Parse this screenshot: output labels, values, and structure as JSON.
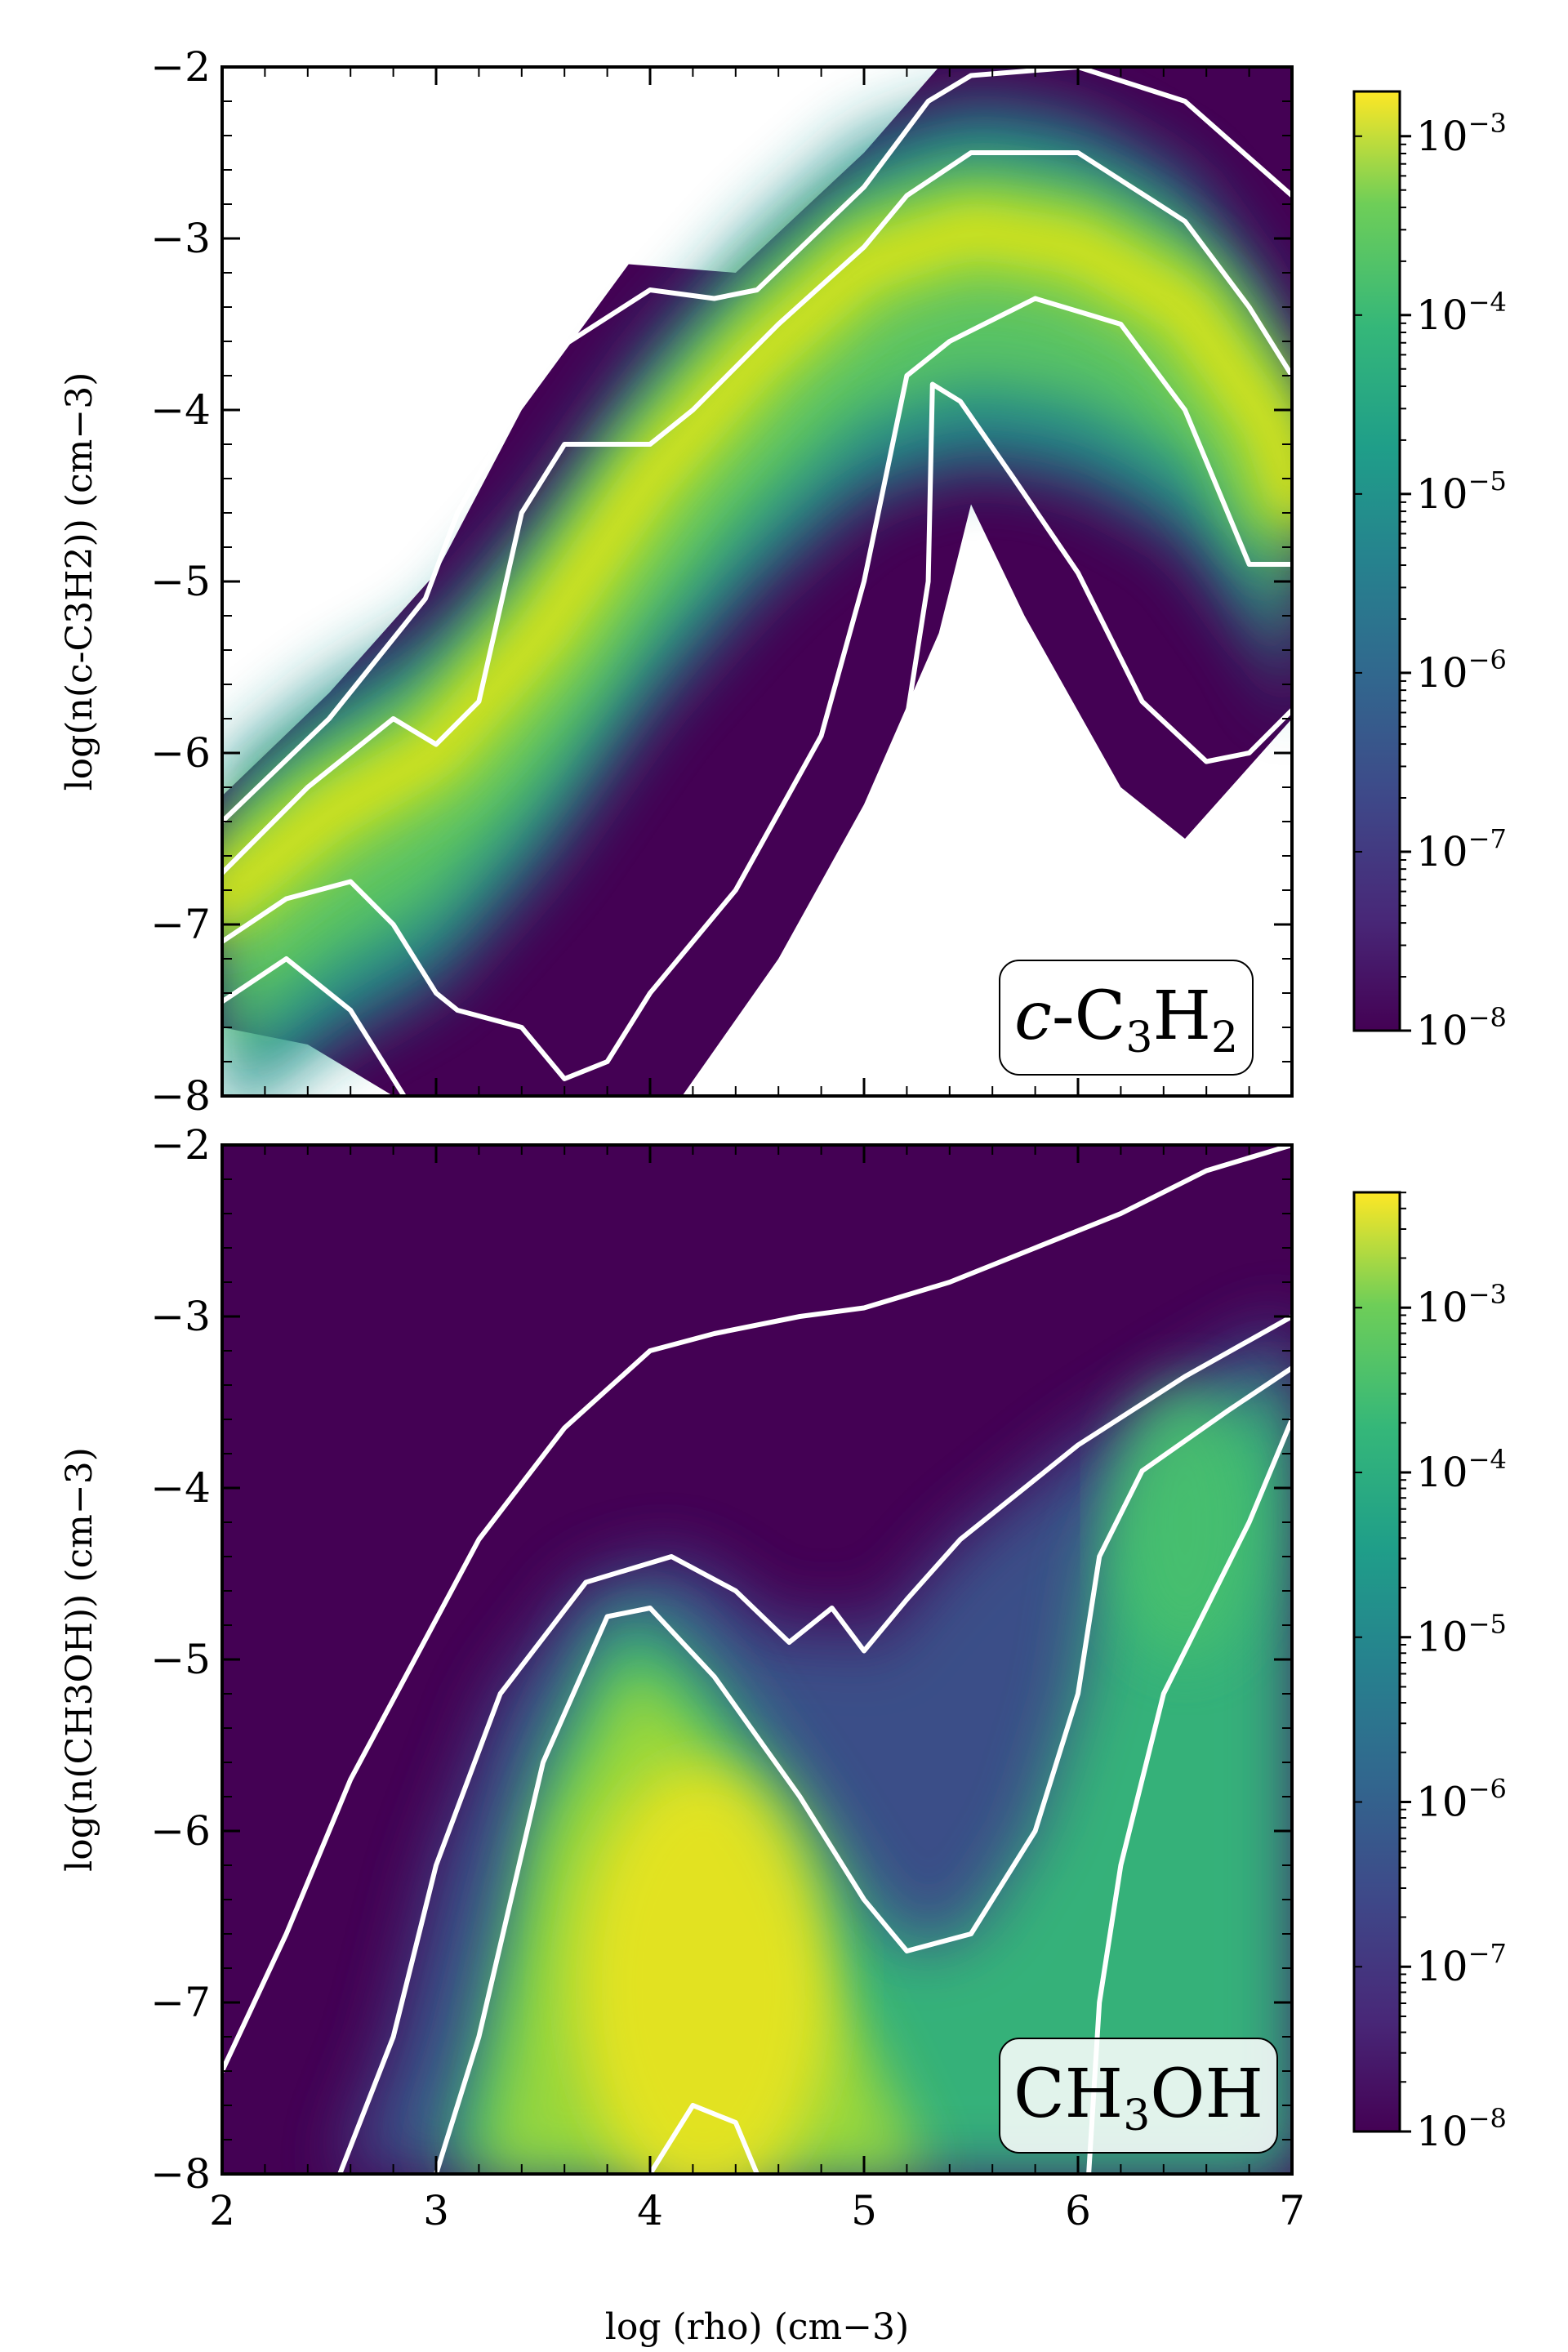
{
  "chart_data": [
    {
      "type": "heatmap",
      "species": "c-C3H2",
      "title": "",
      "tag_text": {
        "pre": "",
        "italic": "c",
        "mid": "-C",
        "sub1": "3",
        "mid2": "H",
        "sub2": "2",
        "post": ""
      },
      "ylabel_text": "log(n(c-C3H2)) (cm−3)",
      "xlabel": "",
      "xlim": [
        2,
        7
      ],
      "ylim": [
        -8,
        -2
      ],
      "xticks": [
        2,
        3,
        4,
        5,
        6,
        7
      ],
      "yticks": [
        -8,
        -7,
        -6,
        -5,
        -4,
        -3,
        -2
      ],
      "ytick_labels": [
        "−8",
        "−7",
        "−6",
        "−5",
        "−4",
        "−3",
        "−2"
      ],
      "colorbar": {
        "scale": "log",
        "min_exp": -8,
        "max_exp": -2.75,
        "ticks": [
          -8,
          -7,
          -6,
          -5,
          -4,
          -3
        ],
        "tick_base": "10",
        "tick_exps": [
          "−8",
          "−7",
          "−6",
          "−5",
          "−4",
          "−3"
        ]
      },
      "support": {
        "top": [
          [
            2.0,
            -6.25
          ],
          [
            2.5,
            -5.65
          ],
          [
            3.0,
            -4.95
          ],
          [
            3.4,
            -4.0
          ],
          [
            3.9,
            -3.15
          ],
          [
            4.4,
            -3.2
          ],
          [
            5.0,
            -2.5
          ],
          [
            5.35,
            -2.0
          ],
          [
            7.0,
            -2.0
          ]
        ],
        "bottom": [
          [
            2.0,
            -7.6
          ],
          [
            2.4,
            -7.7
          ],
          [
            2.8,
            -8.0
          ],
          [
            4.15,
            -8.0
          ],
          [
            4.6,
            -7.2
          ],
          [
            5.0,
            -6.3
          ],
          [
            5.35,
            -5.3
          ],
          [
            5.5,
            -4.55
          ],
          [
            5.75,
            -5.2
          ],
          [
            6.2,
            -6.2
          ],
          [
            6.5,
            -6.5
          ],
          [
            7.0,
            -5.8
          ]
        ]
      },
      "ridge": [
        [
          2.0,
          -6.85
        ],
        [
          2.5,
          -6.35
        ],
        [
          3.0,
          -6.0
        ],
        [
          3.5,
          -5.3
        ],
        [
          4.0,
          -4.4
        ],
        [
          4.5,
          -3.7
        ],
        [
          5.0,
          -3.15
        ],
        [
          5.5,
          -2.95
        ],
        [
          6.0,
          -3.05
        ],
        [
          6.5,
          -3.4
        ],
        [
          6.9,
          -4.1
        ],
        [
          7.0,
          -4.5
        ]
      ],
      "contours": [
        {
          "level": "outer",
          "points": [
            [
              2.0,
              -6.4
            ],
            [
              2.5,
              -5.8
            ],
            [
              2.95,
              -5.1
            ],
            [
              3.1,
              -4.6
            ],
            [
              3.5,
              -3.7
            ],
            [
              4.0,
              -3.3
            ],
            [
              4.3,
              -3.35
            ],
            [
              4.5,
              -3.3
            ],
            [
              5.0,
              -2.7
            ],
            [
              5.3,
              -2.2
            ],
            [
              5.5,
              -2.05
            ],
            [
              6.0,
              -2.0
            ],
            [
              6.5,
              -2.2
            ],
            [
              7.0,
              -2.75
            ]
          ]
        },
        {
          "level": "outer-low",
          "points": [
            [
              2.0,
              -7.45
            ],
            [
              2.3,
              -7.2
            ],
            [
              2.6,
              -7.5
            ],
            [
              2.75,
              -7.8
            ],
            [
              2.85,
              -8.0
            ]
          ]
        },
        {
          "level": "outer-low-2",
          "points": [
            [
              4.2,
              -8.0
            ],
            [
              4.6,
              -7.3
            ],
            [
              5.0,
              -6.4
            ],
            [
              5.2,
              -5.8
            ],
            [
              5.3,
              -5.0
            ],
            [
              5.32,
              -3.85
            ],
            [
              5.45,
              -3.95
            ],
            [
              5.7,
              -4.4
            ],
            [
              6.0,
              -4.95
            ],
            [
              6.3,
              -5.7
            ],
            [
              6.6,
              -6.05
            ],
            [
              6.8,
              -6.0
            ],
            [
              7.0,
              -5.75
            ]
          ]
        },
        {
          "level": "middle",
          "points": [
            [
              2.0,
              -6.7
            ],
            [
              2.4,
              -6.2
            ],
            [
              2.8,
              -5.8
            ],
            [
              3.0,
              -5.95
            ],
            [
              3.2,
              -5.7
            ],
            [
              3.4,
              -4.6
            ],
            [
              3.6,
              -4.2
            ],
            [
              4.0,
              -4.2
            ],
            [
              4.2,
              -4.0
            ],
            [
              4.6,
              -3.5
            ],
            [
              5.0,
              -3.05
            ],
            [
              5.2,
              -2.75
            ],
            [
              5.5,
              -2.5
            ],
            [
              6.0,
              -2.5
            ],
            [
              6.5,
              -2.9
            ],
            [
              6.8,
              -3.4
            ],
            [
              7.0,
              -3.8
            ]
          ]
        },
        {
          "level": "middle-low",
          "points": [
            [
              2.0,
              -7.1
            ],
            [
              2.3,
              -6.85
            ],
            [
              2.6,
              -6.75
            ],
            [
              2.8,
              -7.0
            ],
            [
              3.0,
              -7.4
            ],
            [
              3.1,
              -7.5
            ],
            [
              3.4,
              -7.6
            ],
            [
              3.6,
              -7.9
            ],
            [
              3.8,
              -7.8
            ],
            [
              4.0,
              -7.4
            ],
            [
              4.4,
              -6.8
            ],
            [
              4.8,
              -5.9
            ],
            [
              5.0,
              -5.0
            ],
            [
              5.2,
              -3.8
            ],
            [
              5.4,
              -3.6
            ],
            [
              5.8,
              -3.35
            ],
            [
              6.2,
              -3.5
            ],
            [
              6.5,
              -4.0
            ],
            [
              6.8,
              -4.9
            ],
            [
              7.0,
              -4.9
            ]
          ]
        }
      ]
    },
    {
      "type": "heatmap",
      "species": "CH3OH",
      "title": "",
      "tag_text": {
        "pre": "CH",
        "italic": "",
        "mid": "",
        "sub1": "3",
        "mid2": "OH",
        "sub2": "",
        "post": ""
      },
      "ylabel_text": "log(n(CH3OH)) (cm−3)",
      "xlabel": "log (rho) (cm−3)",
      "xlim": [
        2,
        7
      ],
      "ylim": [
        -8,
        -2
      ],
      "xticks": [
        2,
        3,
        4,
        5,
        6,
        7
      ],
      "xtick_labels": [
        "2",
        "3",
        "4",
        "5",
        "6",
        "7"
      ],
      "yticks": [
        -8,
        -7,
        -6,
        -5,
        -4,
        -3,
        -2
      ],
      "ytick_labels": [
        "−8",
        "−7",
        "−6",
        "−5",
        "−4",
        "−3",
        "−2"
      ],
      "colorbar": {
        "scale": "log",
        "min_exp": -8,
        "max_exp": -2.3,
        "ticks": [
          -8,
          -7,
          -6,
          -5,
          -4,
          -3
        ],
        "tick_base": "10",
        "tick_exps": [
          "−8",
          "−7",
          "−6",
          "−5",
          "−4",
          "−3"
        ]
      },
      "contours": [
        {
          "level": "outer",
          "points": [
            [
              2.0,
              -7.4
            ],
            [
              2.3,
              -6.6
            ],
            [
              2.6,
              -5.7
            ],
            [
              2.9,
              -5.0
            ],
            [
              3.2,
              -4.3
            ],
            [
              3.6,
              -3.65
            ],
            [
              4.0,
              -3.2
            ],
            [
              4.3,
              -3.1
            ],
            [
              4.7,
              -3.0
            ],
            [
              5.0,
              -2.95
            ],
            [
              5.4,
              -2.8
            ],
            [
              5.8,
              -2.6
            ],
            [
              6.2,
              -2.4
            ],
            [
              6.6,
              -2.15
            ],
            [
              7.0,
              -2.0
            ]
          ]
        },
        {
          "level": "middle",
          "points": [
            [
              2.55,
              -8.0
            ],
            [
              2.8,
              -7.2
            ],
            [
              3.0,
              -6.2
            ],
            [
              3.3,
              -5.2
            ],
            [
              3.7,
              -4.55
            ],
            [
              4.1,
              -4.4
            ],
            [
              4.4,
              -4.6
            ],
            [
              4.65,
              -4.9
            ],
            [
              4.85,
              -4.7
            ],
            [
              5.0,
              -4.95
            ],
            [
              5.2,
              -4.65
            ],
            [
              5.45,
              -4.3
            ],
            [
              6.0,
              -3.75
            ],
            [
              6.5,
              -3.35
            ],
            [
              7.0,
              -3.0
            ]
          ]
        },
        {
          "level": "inner",
          "points": [
            [
              3.0,
              -8.0
            ],
            [
              3.2,
              -7.2
            ],
            [
              3.5,
              -5.6
            ],
            [
              3.8,
              -4.75
            ],
            [
              4.0,
              -4.7
            ],
            [
              4.3,
              -5.1
            ],
            [
              4.7,
              -5.8
            ],
            [
              5.0,
              -6.4
            ],
            [
              5.2,
              -6.7
            ],
            [
              5.5,
              -6.6
            ],
            [
              5.8,
              -6.0
            ],
            [
              6.0,
              -5.2
            ],
            [
              6.1,
              -4.4
            ],
            [
              6.3,
              -3.9
            ],
            [
              6.7,
              -3.55
            ],
            [
              7.0,
              -3.3
            ]
          ]
        },
        {
          "level": "core",
          "points": [
            [
              6.05,
              -8.0
            ],
            [
              6.1,
              -7.0
            ],
            [
              6.2,
              -6.2
            ],
            [
              6.4,
              -5.2
            ],
            [
              6.6,
              -4.7
            ],
            [
              6.8,
              -4.2
            ],
            [
              7.0,
              -3.6
            ]
          ]
        },
        {
          "level": "core-low",
          "points": [
            [
              4.0,
              -8.0
            ],
            [
              4.2,
              -7.6
            ],
            [
              4.4,
              -7.7
            ],
            [
              4.5,
              -8.0
            ]
          ]
        }
      ]
    }
  ]
}
